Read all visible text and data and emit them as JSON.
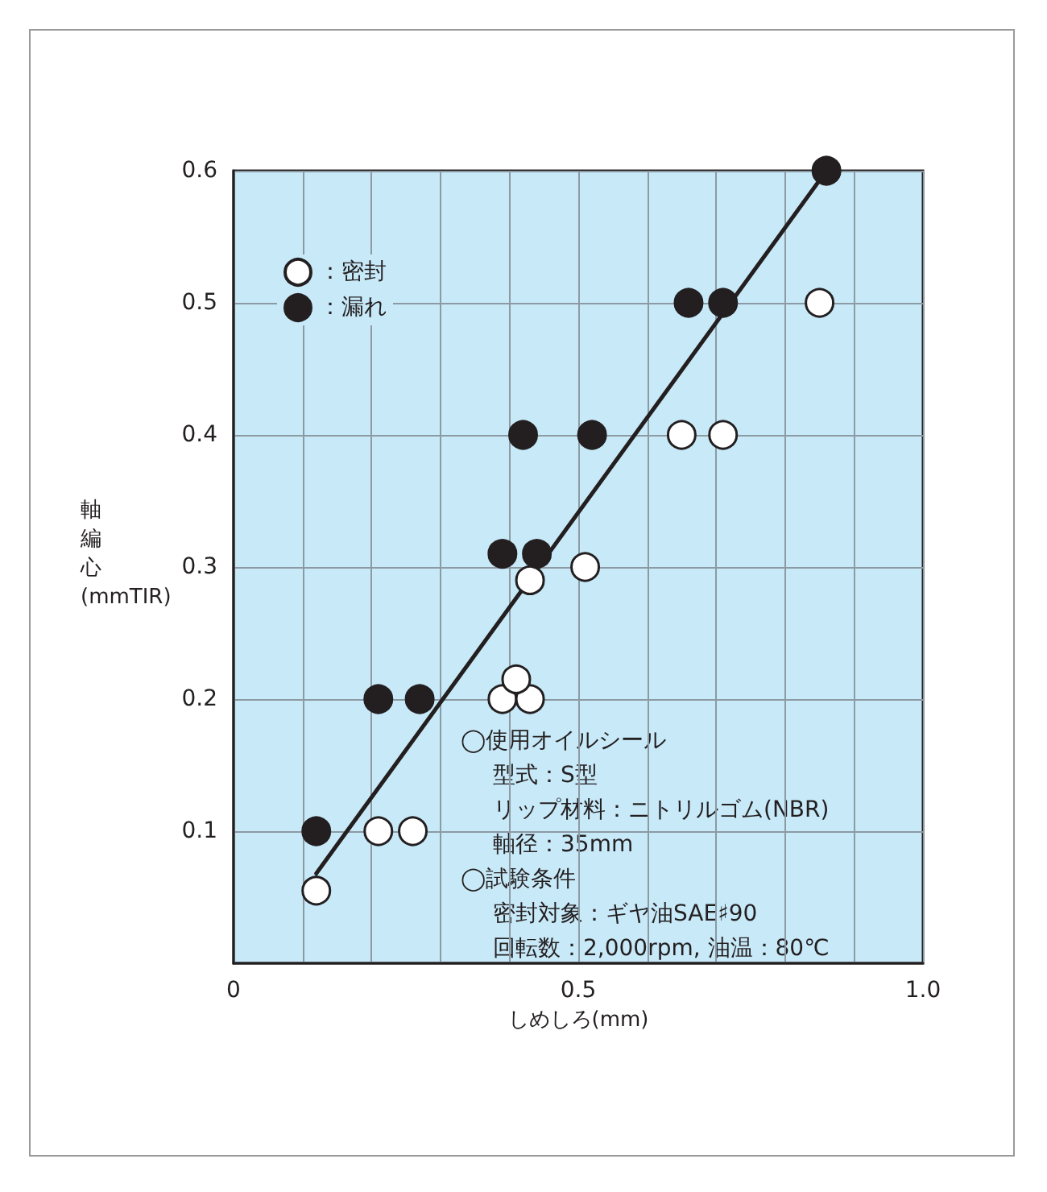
{
  "chart_data": {
    "type": "scatter",
    "xlabel": "しめしろ(mm)",
    "ylabel": "軸編心(mmTIR)",
    "xlim": [
      0,
      1.0
    ],
    "xticks": [
      0,
      {
        "value": 0.1,
        "label": null
      },
      {
        "value": 0.2,
        "label": null
      },
      {
        "value": 0.3,
        "label": null
      },
      {
        "value": 0.4,
        "label": null
      },
      {
        "value": 0.5,
        "label": "0.5"
      },
      {
        "value": 0.6,
        "label": null
      },
      {
        "value": 0.7,
        "label": null
      },
      {
        "value": 0.8,
        "label": null
      },
      {
        "value": 0.9,
        "label": null
      },
      {
        "value": 1.0,
        "label": "1.0"
      }
    ],
    "ylim": [
      0,
      0.6
    ],
    "yticks": [
      0.1,
      0.2,
      0.3,
      0.4,
      0.5,
      0.6
    ],
    "grid": true,
    "legend": "top left",
    "marker": "circle",
    "series": [
      {
        "name": "：密封",
        "color": "#ffffff",
        "x": [
          0.12,
          0.21,
          0.26,
          0.39,
          0.43,
          0.41,
          0.43,
          0.51,
          0.65,
          0.71,
          0.85
        ],
        "values": [
          0.055,
          0.1,
          0.1,
          0.2,
          0.2,
          0.215,
          0.29,
          0.3,
          0.4,
          0.4,
          0.5
        ]
      },
      {
        "name": "：漏れ",
        "color": "#231f20",
        "x": [
          0.12,
          0.21,
          0.27,
          0.39,
          0.44,
          0.42,
          0.52,
          0.66,
          0.71,
          0.86
        ],
        "values": [
          0.1,
          0.2,
          0.2,
          0.31,
          0.31,
          0.4,
          0.4,
          0.5,
          0.5,
          0.6
        ]
      },
      {
        "type": "line",
        "color": "#231f20",
        "marker": "none",
        "line_style": "solid",
        "x": [
          0.12,
          0.86
        ],
        "values": [
          0.068,
          0.6
        ]
      }
    ],
    "annotations": [
      "◯使用オイルシール",
      "型式：S型",
      "リップ材料：ニトリルゴム(NBR)",
      "軸径：35mm",
      "◯試験条件",
      "密封対象：ギヤ油SAE♯90",
      "回転数：2,000rpm, 油温：80℃"
    ]
  }
}
